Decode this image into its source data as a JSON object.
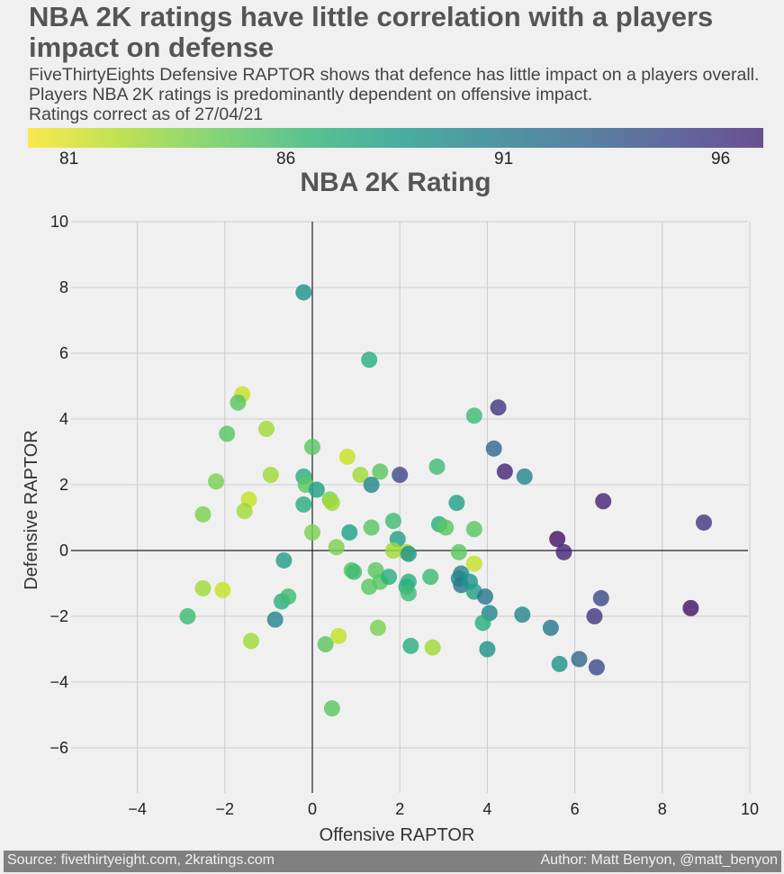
{
  "title": "NBA 2K ratings have little correlation with a players impact on defense",
  "subtitle": "FiveThirtyEights Defensive RAPTOR shows that defence has little impact on a players overall.\nPlayers NBA 2K ratings is predominantly dependent on offensive impact.\nRatings correct as of 27/04/21",
  "colorbar": {
    "label": "NBA 2K Rating",
    "ticks": [
      "81",
      "86",
      "91",
      "96"
    ],
    "range": [
      79.5,
      96.9
    ],
    "colors": [
      "#fde725",
      "#482878"
    ]
  },
  "footer": {
    "source": "Source: fivethirtyeight.com, 2kratings.com",
    "author": "Author: Matt Benyon, @matt_benyon"
  },
  "chart_data": {
    "type": "scatter",
    "xlabel": "Offensive RAPTOR",
    "ylabel": "Defensive RAPTOR",
    "xlim": [
      -5.5,
      10
    ],
    "ylim": [
      -7.3,
      10
    ],
    "xticks": [
      -4,
      -2,
      0,
      2,
      4,
      6,
      8,
      10
    ],
    "yticks": [
      -6,
      -4,
      -2,
      0,
      2,
      4,
      6,
      8,
      10
    ],
    "grid": true,
    "points": [
      {
        "x": -0.2,
        "y": 7.85,
        "rating": 88
      },
      {
        "x": 1.3,
        "y": 5.8,
        "rating": 86
      },
      {
        "x": -1.6,
        "y": 4.75,
        "rating": 81
      },
      {
        "x": -1.7,
        "y": 4.5,
        "rating": 84
      },
      {
        "x": -1.05,
        "y": 3.7,
        "rating": 82
      },
      {
        "x": -1.95,
        "y": 3.55,
        "rating": 84
      },
      {
        "x": 0.0,
        "y": 3.15,
        "rating": 84
      },
      {
        "x": 0.8,
        "y": 2.85,
        "rating": 81
      },
      {
        "x": -0.95,
        "y": 2.3,
        "rating": 82
      },
      {
        "x": 1.1,
        "y": 2.3,
        "rating": 82
      },
      {
        "x": 1.55,
        "y": 2.4,
        "rating": 84
      },
      {
        "x": 2.85,
        "y": 2.55,
        "rating": 85
      },
      {
        "x": -0.2,
        "y": 2.25,
        "rating": 86
      },
      {
        "x": -0.15,
        "y": 2.0,
        "rating": 84
      },
      {
        "x": 0.1,
        "y": 1.85,
        "rating": 87
      },
      {
        "x": -2.2,
        "y": 2.1,
        "rating": 83
      },
      {
        "x": 1.35,
        "y": 2.0,
        "rating": 89
      },
      {
        "x": 2.0,
        "y": 2.3,
        "rating": 93
      },
      {
        "x": 3.7,
        "y": 4.1,
        "rating": 85
      },
      {
        "x": 4.25,
        "y": 4.35,
        "rating": 94
      },
      {
        "x": 4.15,
        "y": 3.1,
        "rating": 91
      },
      {
        "x": 4.4,
        "y": 2.4,
        "rating": 95
      },
      {
        "x": 4.85,
        "y": 2.25,
        "rating": 89
      },
      {
        "x": 6.65,
        "y": 1.5,
        "rating": 95
      },
      {
        "x": 8.95,
        "y": 0.85,
        "rating": 94
      },
      {
        "x": -1.45,
        "y": 1.55,
        "rating": 81
      },
      {
        "x": -1.55,
        "y": 1.2,
        "rating": 82
      },
      {
        "x": -2.5,
        "y": 1.1,
        "rating": 83
      },
      {
        "x": -0.2,
        "y": 1.4,
        "rating": 86
      },
      {
        "x": 0.4,
        "y": 1.55,
        "rating": 83
      },
      {
        "x": 0.45,
        "y": 1.45,
        "rating": 82
      },
      {
        "x": 3.3,
        "y": 1.45,
        "rating": 87
      },
      {
        "x": 1.35,
        "y": 0.7,
        "rating": 84
      },
      {
        "x": 1.85,
        "y": 0.9,
        "rating": 85
      },
      {
        "x": 2.9,
        "y": 0.8,
        "rating": 86
      },
      {
        "x": 3.05,
        "y": 0.7,
        "rating": 84
      },
      {
        "x": 3.7,
        "y": 0.65,
        "rating": 84
      },
      {
        "x": 0.85,
        "y": 0.55,
        "rating": 87
      },
      {
        "x": 1.95,
        "y": 0.35,
        "rating": 87
      },
      {
        "x": 0.0,
        "y": 0.55,
        "rating": 83
      },
      {
        "x": 0.55,
        "y": 0.1,
        "rating": 83
      },
      {
        "x": 1.85,
        "y": 0.0,
        "rating": 82
      },
      {
        "x": 2.15,
        "y": -0.05,
        "rating": 82
      },
      {
        "x": 2.2,
        "y": -0.1,
        "rating": 88
      },
      {
        "x": 3.35,
        "y": -0.05,
        "rating": 84
      },
      {
        "x": 3.7,
        "y": -0.4,
        "rating": 81
      },
      {
        "x": 5.6,
        "y": 0.35,
        "rating": 96
      },
      {
        "x": 5.75,
        "y": -0.05,
        "rating": 95
      },
      {
        "x": -0.65,
        "y": -0.3,
        "rating": 87
      },
      {
        "x": 0.9,
        "y": -0.6,
        "rating": 84
      },
      {
        "x": 0.95,
        "y": -0.65,
        "rating": 85
      },
      {
        "x": 1.45,
        "y": -0.6,
        "rating": 84
      },
      {
        "x": 1.55,
        "y": -0.95,
        "rating": 84
      },
      {
        "x": 1.75,
        "y": -0.8,
        "rating": 86
      },
      {
        "x": 1.3,
        "y": -1.1,
        "rating": 84
      },
      {
        "x": 2.15,
        "y": -1.1,
        "rating": 86
      },
      {
        "x": 2.2,
        "y": -0.95,
        "rating": 86
      },
      {
        "x": 2.2,
        "y": -1.3,
        "rating": 85
      },
      {
        "x": 2.7,
        "y": -0.8,
        "rating": 85
      },
      {
        "x": 3.4,
        "y": -0.7,
        "rating": 89
      },
      {
        "x": 3.35,
        "y": -0.85,
        "rating": 89
      },
      {
        "x": 3.4,
        "y": -1.05,
        "rating": 90
      },
      {
        "x": 3.6,
        "y": -0.95,
        "rating": 88
      },
      {
        "x": 3.7,
        "y": -1.25,
        "rating": 87
      },
      {
        "x": 3.95,
        "y": -1.4,
        "rating": 90
      },
      {
        "x": 4.05,
        "y": -1.9,
        "rating": 89
      },
      {
        "x": 3.9,
        "y": -2.2,
        "rating": 86
      },
      {
        "x": 4.8,
        "y": -1.95,
        "rating": 89
      },
      {
        "x": 5.45,
        "y": -2.35,
        "rating": 90
      },
      {
        "x": 6.45,
        "y": -2.0,
        "rating": 94
      },
      {
        "x": 6.6,
        "y": -1.45,
        "rating": 93
      },
      {
        "x": 8.65,
        "y": -1.75,
        "rating": 96
      },
      {
        "x": -0.7,
        "y": -1.55,
        "rating": 86
      },
      {
        "x": -0.55,
        "y": -1.4,
        "rating": 85
      },
      {
        "x": -0.85,
        "y": -2.1,
        "rating": 89
      },
      {
        "x": -2.5,
        "y": -1.15,
        "rating": 82
      },
      {
        "x": -2.05,
        "y": -1.2,
        "rating": 81
      },
      {
        "x": -2.85,
        "y": -2.0,
        "rating": 85
      },
      {
        "x": -1.4,
        "y": -2.75,
        "rating": 82
      },
      {
        "x": 0.3,
        "y": -2.85,
        "rating": 84
      },
      {
        "x": 0.6,
        "y": -2.6,
        "rating": 81
      },
      {
        "x": 1.5,
        "y": -2.35,
        "rating": 83
      },
      {
        "x": 2.25,
        "y": -2.9,
        "rating": 86
      },
      {
        "x": 2.75,
        "y": -2.95,
        "rating": 82
      },
      {
        "x": 4.0,
        "y": -3.0,
        "rating": 88
      },
      {
        "x": 5.65,
        "y": -3.45,
        "rating": 88
      },
      {
        "x": 6.1,
        "y": -3.3,
        "rating": 91
      },
      {
        "x": 6.5,
        "y": -3.55,
        "rating": 93
      },
      {
        "x": 0.45,
        "y": -4.8,
        "rating": 84
      }
    ]
  }
}
